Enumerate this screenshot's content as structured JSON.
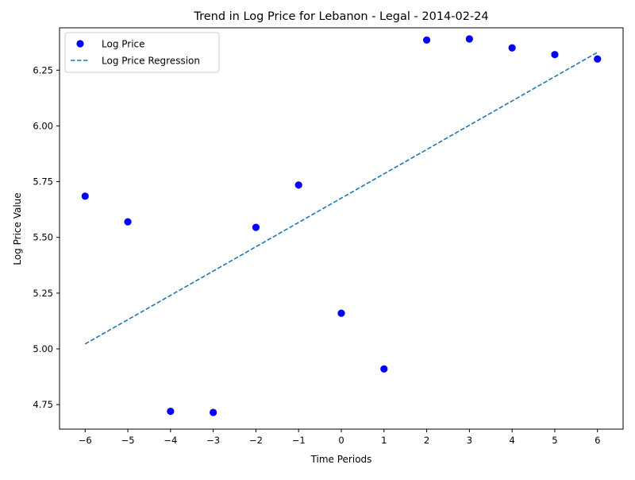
{
  "chart_data": {
    "type": "scatter",
    "title": "Trend in Log Price for Lebanon - Legal - 2014-02-24",
    "xlabel": "Time Periods",
    "ylabel": "Log Price Value",
    "xlim": [
      -6.6,
      6.6
    ],
    "ylim": [
      4.64,
      6.44
    ],
    "xticks": [
      -6,
      -5,
      -4,
      -3,
      -2,
      -1,
      0,
      1,
      2,
      3,
      4,
      5,
      6
    ],
    "xtick_labels": [
      "−6",
      "−5",
      "−4",
      "−3",
      "−2",
      "−1",
      "0",
      "1",
      "2",
      "3",
      "4",
      "5",
      "6"
    ],
    "yticks": [
      4.75,
      5.0,
      5.25,
      5.5,
      5.75,
      6.0,
      6.25
    ],
    "ytick_labels": [
      "4.75",
      "5.00",
      "5.25",
      "5.50",
      "5.75",
      "6.00",
      "6.25"
    ],
    "grid": false,
    "legend_position": "top-left",
    "series": [
      {
        "name": "Log Price",
        "kind": "scatter",
        "color": "#0000ff",
        "x": [
          -6,
          -5,
          -4,
          -3,
          -2,
          -1,
          0,
          1,
          2,
          3,
          4,
          5,
          6
        ],
        "y": [
          5.685,
          5.57,
          4.72,
          4.715,
          5.545,
          5.735,
          5.16,
          4.91,
          6.385,
          6.39,
          6.35,
          6.32,
          6.3
        ]
      },
      {
        "name": "Log Price Regression",
        "kind": "line",
        "style": "dashed",
        "color": "#1f77b4",
        "x": [
          -6,
          6
        ],
        "y": [
          5.022,
          6.33
        ]
      }
    ]
  }
}
